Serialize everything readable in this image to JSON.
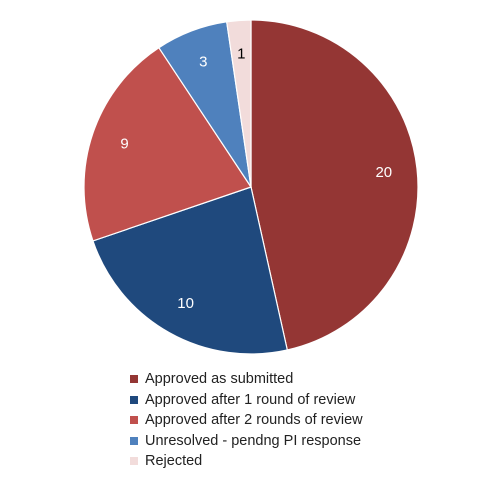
{
  "chart_data": {
    "type": "pie",
    "title": "",
    "start_angle_deg": 0,
    "direction": "clockwise",
    "legend_position": "bottom",
    "slices": [
      {
        "label": "Approved as submitted",
        "value": 20,
        "color": "#943634",
        "label_color": "#ffffff"
      },
      {
        "label": "Approved after 1 round of review",
        "value": 10,
        "color": "#1f497d",
        "label_color": "#ffffff"
      },
      {
        "label": "Approved after 2 rounds of review",
        "value": 9,
        "color": "#c0504d",
        "label_color": "#ffffff"
      },
      {
        "label": "Unresolved - pendng PI response",
        "value": 3,
        "color": "#4f81bd",
        "label_color": "#ffffff"
      },
      {
        "label": "Rejected",
        "value": 1,
        "color": "#f2dcdb",
        "label_color": "#000000"
      }
    ]
  }
}
